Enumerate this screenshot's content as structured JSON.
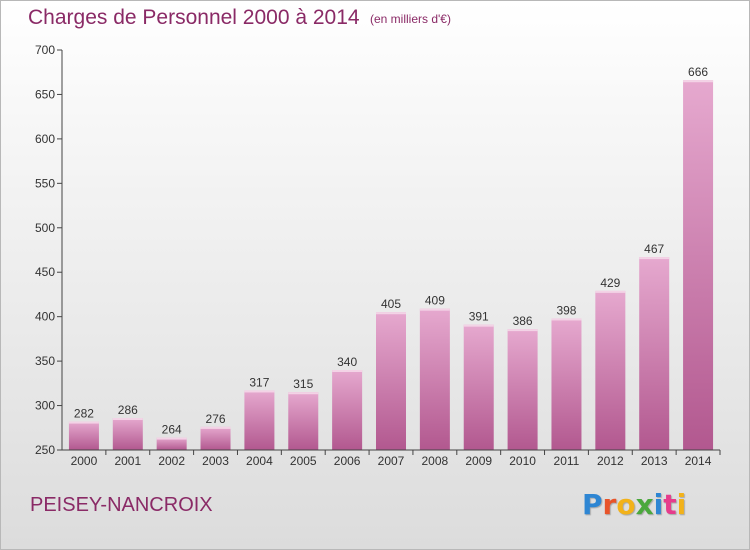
{
  "title": "Charges de Personnel 2000 à 2014",
  "subtitle": "(en milliers d'€)",
  "commune": "PEISEY-NANCROIX",
  "logo": {
    "text": "Proxiti",
    "colors": [
      "#2e86d3",
      "#e8542a",
      "#f2b21a",
      "#4aa83c",
      "#2e86d3",
      "#e63c8c",
      "#f2b21a"
    ]
  },
  "colors": {
    "title": "#8a2a66",
    "bar_top": "#e6a9cf",
    "bar_bottom": "#b2588f",
    "axis": "#444444"
  },
  "chart_data": {
    "type": "bar",
    "title": "Charges de Personnel 2000 à 2014",
    "subtitle": "(en milliers d'€)",
    "categories": [
      "2000",
      "2001",
      "2002",
      "2003",
      "2004",
      "2005",
      "2006",
      "2007",
      "2008",
      "2009",
      "2010",
      "2011",
      "2012",
      "2013",
      "2014"
    ],
    "values": [
      282,
      286,
      264,
      276,
      317,
      315,
      340,
      405,
      409,
      391,
      386,
      398,
      429,
      467,
      666
    ],
    "ylim": [
      250,
      700
    ],
    "yticks": [
      250,
      300,
      350,
      400,
      450,
      500,
      550,
      600,
      650,
      700
    ],
    "grid": false,
    "legend": "none"
  }
}
